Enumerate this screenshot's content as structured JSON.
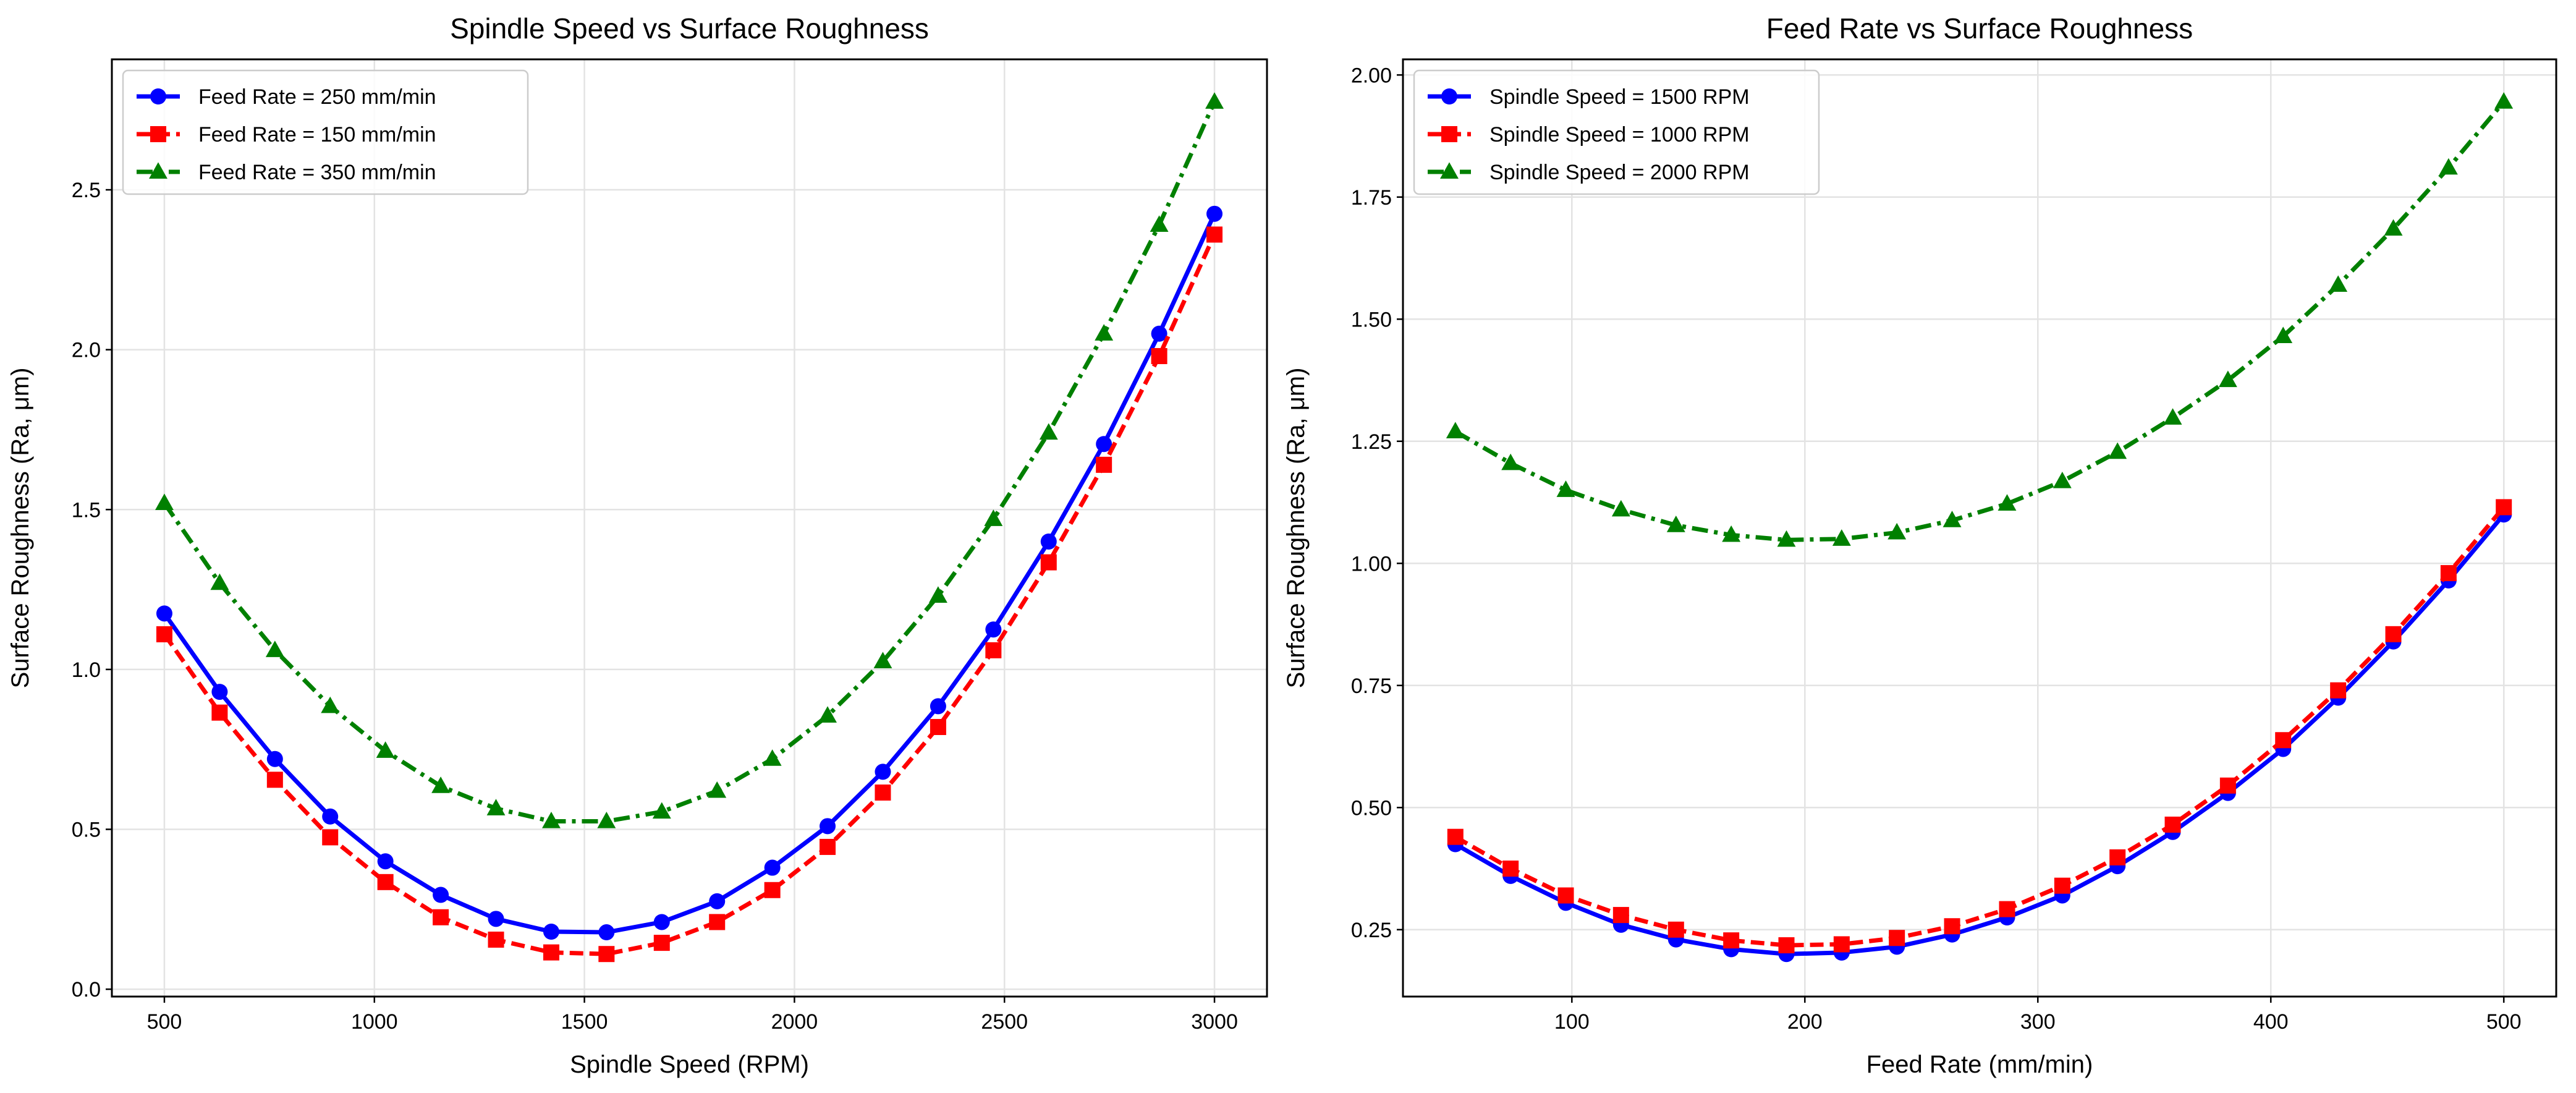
{
  "chart_data": [
    {
      "type": "line",
      "title": "Spindle Speed vs Surface Roughness",
      "xlabel": "Spindle Speed (RPM)",
      "ylabel": "Surface Roughness (Ra, μm)",
      "xlim": [
        375,
        3125
      ],
      "ylim": [
        -0.023,
        2.908
      ],
      "xticks": [
        500,
        1000,
        1500,
        2000,
        2500,
        3000
      ],
      "xtick_labels": [
        "500",
        "1000",
        "1500",
        "2000",
        "2500",
        "3000"
      ],
      "yticks": [
        0.0,
        0.5,
        1.0,
        1.5,
        2.0,
        2.5
      ],
      "ytick_labels": [
        "0.0",
        "0.5",
        "1.0",
        "1.5",
        "2.0",
        "2.5"
      ],
      "grid": true,
      "legend_position": "top-left",
      "x": [
        500,
        631.6,
        763.2,
        894.7,
        1026.3,
        1157.9,
        1289.5,
        1421.1,
        1552.6,
        1684.2,
        1815.8,
        1947.4,
        2078.9,
        2210.5,
        2342.1,
        2473.7,
        2605.3,
        2736.8,
        2868.4,
        3000
      ],
      "series": [
        {
          "name": "Feed Rate = 250 mm/min",
          "color": "#0000ff",
          "marker": "circle",
          "linestyle": "solid",
          "values": [
            1.175,
            0.93,
            0.72,
            0.54,
            0.4,
            0.295,
            0.22,
            0.18,
            0.178,
            0.21,
            0.275,
            0.38,
            0.51,
            0.68,
            0.885,
            1.125,
            1.4,
            1.705,
            2.05,
            2.425
          ]
        },
        {
          "name": "Feed Rate = 150 mm/min",
          "color": "#ff0000",
          "marker": "square",
          "linestyle": "dashed",
          "values": [
            1.11,
            0.865,
            0.655,
            0.475,
            0.335,
            0.225,
            0.155,
            0.115,
            0.11,
            0.145,
            0.21,
            0.31,
            0.445,
            0.615,
            0.82,
            1.06,
            1.335,
            1.64,
            1.98,
            2.36
          ]
        },
        {
          "name": "Feed Rate = 350 mm/min",
          "color": "#008000",
          "marker": "triangle",
          "linestyle": "dashdot",
          "values": [
            1.52,
            1.27,
            1.06,
            0.885,
            0.745,
            0.635,
            0.565,
            0.525,
            0.525,
            0.555,
            0.62,
            0.72,
            0.855,
            1.025,
            1.23,
            1.47,
            1.74,
            2.05,
            2.39,
            2.775
          ]
        }
      ]
    },
    {
      "type": "line",
      "title": "Feed Rate vs Surface Roughness",
      "xlabel": "Feed Rate (mm/min)",
      "ylabel": "Surface Roughness (Ra, μm)",
      "xlim": [
        27.5,
        522.5
      ],
      "ylim": [
        0.113,
        2.032
      ],
      "xticks": [
        100,
        200,
        300,
        400,
        500
      ],
      "xtick_labels": [
        "100",
        "200",
        "300",
        "400",
        "500"
      ],
      "yticks": [
        0.25,
        0.5,
        0.75,
        1.0,
        1.25,
        1.5,
        1.75,
        2.0
      ],
      "ytick_labels": [
        "0.25",
        "0.50",
        "0.75",
        "1.00",
        "1.25",
        "1.50",
        "1.75",
        "2.00"
      ],
      "grid": true,
      "legend_position": "top-left",
      "x": [
        50,
        73.7,
        97.4,
        121.1,
        144.7,
        168.4,
        192.1,
        215.8,
        239.5,
        263.2,
        286.8,
        310.5,
        334.2,
        357.9,
        381.6,
        405.3,
        428.9,
        452.6,
        476.3,
        500
      ],
      "series": [
        {
          "name": "Spindle Speed = 1500 RPM",
          "color": "#0000ff",
          "marker": "circle",
          "linestyle": "solid",
          "values": [
            0.425,
            0.36,
            0.305,
            0.26,
            0.23,
            0.21,
            0.2,
            0.203,
            0.215,
            0.24,
            0.275,
            0.32,
            0.38,
            0.45,
            0.53,
            0.62,
            0.725,
            0.84,
            0.965,
            1.1
          ]
        },
        {
          "name": "Spindle Speed = 1000 RPM",
          "color": "#ff0000",
          "marker": "square",
          "linestyle": "dashed",
          "values": [
            0.44,
            0.375,
            0.32,
            0.28,
            0.25,
            0.228,
            0.218,
            0.22,
            0.233,
            0.257,
            0.292,
            0.34,
            0.398,
            0.465,
            0.545,
            0.638,
            0.74,
            0.855,
            0.98,
            1.115
          ]
        },
        {
          "name": "Spindle Speed = 2000 RPM",
          "color": "#008000",
          "marker": "triangle",
          "linestyle": "dashdot",
          "values": [
            1.27,
            1.205,
            1.15,
            1.11,
            1.078,
            1.058,
            1.048,
            1.05,
            1.063,
            1.088,
            1.122,
            1.168,
            1.228,
            1.298,
            1.375,
            1.465,
            1.57,
            1.685,
            1.81,
            1.945
          ]
        }
      ]
    }
  ]
}
